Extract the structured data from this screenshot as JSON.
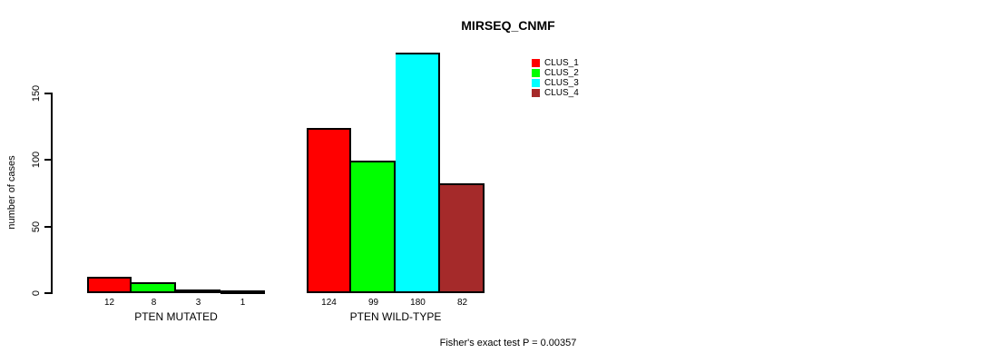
{
  "chart_data": {
    "type": "bar",
    "title": "MIRSEQ_CNMF",
    "ylabel": "number of cases",
    "categories": [
      "PTEN MUTATED",
      "PTEN WILD-TYPE"
    ],
    "series": [
      {
        "name": "CLUS_1",
        "color": "#ff0000",
        "values": [
          12,
          124
        ]
      },
      {
        "name": "CLUS_2",
        "color": "#00ff00",
        "values": [
          8,
          99
        ]
      },
      {
        "name": "CLUS_3",
        "color": "#00ffff",
        "values": [
          3,
          180
        ]
      },
      {
        "name": "CLUS_4",
        "color": "#a52a2a",
        "values": [
          1,
          82
        ]
      }
    ],
    "yticks": [
      0,
      50,
      100,
      150
    ],
    "axis_range": [
      0,
      150
    ],
    "grid": false,
    "value_labels_shown": true,
    "legend_position": "top-right",
    "annotation": "Fisher's exact test P = 0.00357"
  }
}
